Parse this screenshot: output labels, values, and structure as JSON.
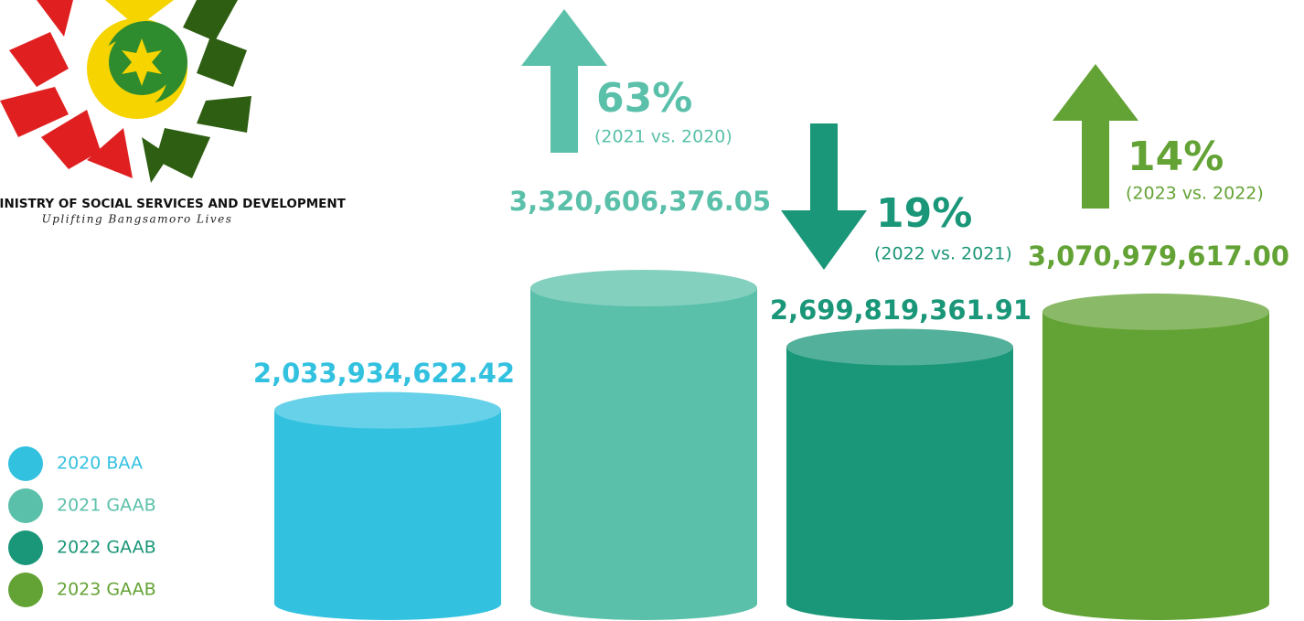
{
  "chart_data": {
    "type": "bar",
    "organization": "MINISTRY OF SOCIAL SERVICES AND DEVELOPMENT",
    "tagline": "Uplifting Bangsamoro Lives",
    "categories": [
      "2020 BAA",
      "2021 GAAB",
      "2022 GAAB",
      "2023 GAAB"
    ],
    "values": [
      2033934622.42,
      3320606376.05,
      2699819361.91,
      3070979617.0
    ],
    "value_labels": [
      "2,033,934,622.42",
      "3,320,606,376.05",
      "2,699,819,361.91",
      "3,070,979,617.00"
    ],
    "colors": [
      "#33c1e0",
      "#5bc0aa",
      "#1a9678",
      "#63a234"
    ],
    "changes": [
      {
        "value": 63,
        "label": "63%",
        "note": "(2021 vs. 2020)",
        "direction": "up"
      },
      {
        "value": 19,
        "label": "19%",
        "note": "(2022 vs. 2021)",
        "direction": "down"
      },
      {
        "value": 14,
        "label": "14%",
        "note": "(2023 vs. 2022)",
        "direction": "up"
      }
    ]
  }
}
